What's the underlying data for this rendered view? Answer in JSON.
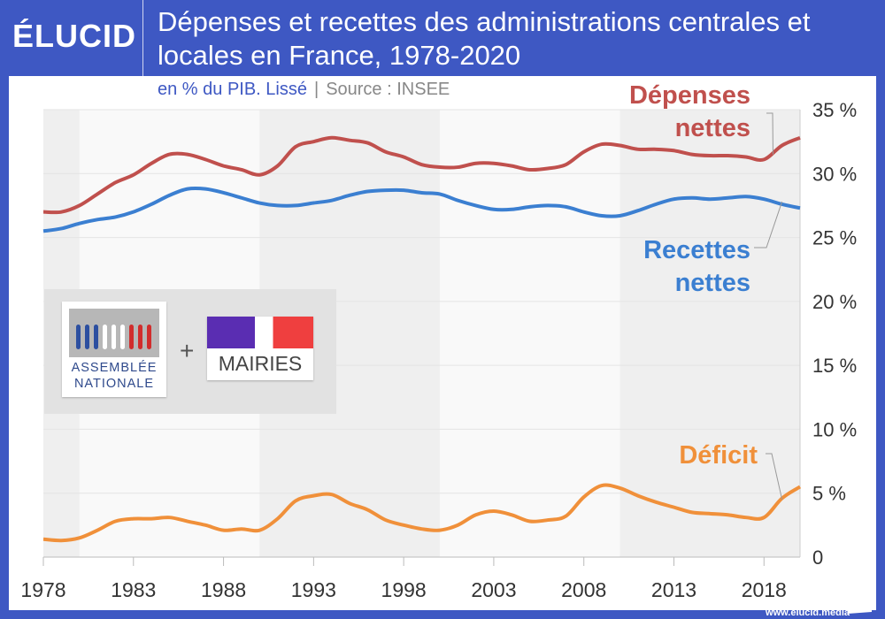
{
  "header": {
    "logo": "ÉLUCID",
    "title": "Dépenses et recettes des administrations centrales et locales en France, 1978-2020",
    "subtitle": "en % du PIB. Lissé",
    "source": "Source : INSEE"
  },
  "footer": {
    "url": "www.elucid.media"
  },
  "logos": {
    "assemblee_line1": "ASSEMBLÉE",
    "assemblee_line2": "NATIONALE",
    "plus": "+",
    "mairies": "MAIRIES"
  },
  "chart_data": {
    "type": "line",
    "title": "Dépenses et recettes des administrations centrales et locales en France, 1978-2020",
    "x": [
      1978,
      1979,
      1980,
      1981,
      1982,
      1983,
      1984,
      1985,
      1986,
      1987,
      1988,
      1989,
      1990,
      1991,
      1992,
      1993,
      1994,
      1995,
      1996,
      1997,
      1998,
      1999,
      2000,
      2001,
      2002,
      2003,
      2004,
      2005,
      2006,
      2007,
      2008,
      2009,
      2010,
      2011,
      2012,
      2013,
      2014,
      2015,
      2016,
      2017,
      2018,
      2019,
      2020
    ],
    "xticks": [
      "1978",
      "1983",
      "1988",
      "1993",
      "1998",
      "2003",
      "2008",
      "2013",
      "2018"
    ],
    "yticks": [
      "0",
      "5 %",
      "10 %",
      "15 %",
      "20 %",
      "25 %",
      "30 %",
      "35 %"
    ],
    "ylim": [
      0,
      35
    ],
    "grid": true,
    "shaded_periods": [
      [
        1978,
        1980
      ],
      [
        1990,
        2000
      ],
      [
        2010,
        2020
      ]
    ],
    "series": [
      {
        "name": "Dépenses nettes",
        "label_lines": [
          "Dépenses",
          "nettes"
        ],
        "color": "#c0504d",
        "values": [
          27.0,
          27.0,
          27.5,
          28.4,
          29.3,
          29.9,
          30.8,
          31.5,
          31.5,
          31.1,
          30.6,
          30.3,
          29.9,
          30.6,
          32.1,
          32.5,
          32.8,
          32.6,
          32.4,
          31.7,
          31.3,
          30.7,
          30.5,
          30.5,
          30.8,
          30.8,
          30.6,
          30.3,
          30.4,
          30.7,
          31.7,
          32.3,
          32.2,
          31.9,
          31.9,
          31.8,
          31.5,
          31.4,
          31.4,
          31.3,
          31.1,
          32.2,
          32.8
        ]
      },
      {
        "name": "Recettes nettes",
        "label_lines": [
          "Recettes",
          "nettes"
        ],
        "color": "#3b7fd1",
        "values": [
          25.5,
          25.7,
          26.1,
          26.4,
          26.6,
          27.0,
          27.6,
          28.3,
          28.8,
          28.8,
          28.5,
          28.1,
          27.7,
          27.5,
          27.5,
          27.7,
          27.9,
          28.3,
          28.6,
          28.7,
          28.7,
          28.5,
          28.4,
          27.9,
          27.5,
          27.2,
          27.2,
          27.4,
          27.5,
          27.4,
          27.0,
          26.7,
          26.7,
          27.1,
          27.6,
          28.0,
          28.1,
          28.0,
          28.1,
          28.2,
          28.0,
          27.6,
          27.3
        ]
      },
      {
        "name": "Déficit",
        "label_lines": [
          "Déficit"
        ],
        "color": "#f0903a",
        "values": [
          1.4,
          1.3,
          1.5,
          2.1,
          2.8,
          3.0,
          3.0,
          3.1,
          2.8,
          2.5,
          2.1,
          2.2,
          2.1,
          3.0,
          4.4,
          4.8,
          4.9,
          4.2,
          3.7,
          2.9,
          2.5,
          2.2,
          2.1,
          2.5,
          3.3,
          3.6,
          3.3,
          2.8,
          2.9,
          3.2,
          4.7,
          5.6,
          5.4,
          4.8,
          4.3,
          3.9,
          3.5,
          3.4,
          3.3,
          3.1,
          3.1,
          4.6,
          5.5
        ]
      }
    ]
  }
}
